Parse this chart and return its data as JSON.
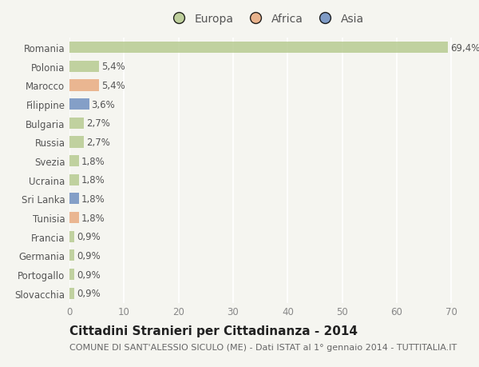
{
  "categories": [
    "Romania",
    "Polonia",
    "Marocco",
    "Filippine",
    "Bulgaria",
    "Russia",
    "Svezia",
    "Ucraina",
    "Sri Lanka",
    "Tunisia",
    "Francia",
    "Germania",
    "Portogallo",
    "Slovacchia"
  ],
  "values": [
    69.4,
    5.4,
    5.4,
    3.6,
    2.7,
    2.7,
    1.8,
    1.8,
    1.8,
    1.8,
    0.9,
    0.9,
    0.9,
    0.9
  ],
  "labels": [
    "69,4%",
    "5,4%",
    "5,4%",
    "3,6%",
    "2,7%",
    "2,7%",
    "1,8%",
    "1,8%",
    "1,8%",
    "1,8%",
    "0,9%",
    "0,9%",
    "0,9%",
    "0,9%"
  ],
  "colors": [
    "#b5c98e",
    "#b5c98e",
    "#e8a87c",
    "#6b8cbf",
    "#b5c98e",
    "#b5c98e",
    "#b5c98e",
    "#b5c98e",
    "#6b8cbf",
    "#e8a87c",
    "#b5c98e",
    "#b5c98e",
    "#b5c98e",
    "#b5c98e"
  ],
  "legend_labels": [
    "Europa",
    "Africa",
    "Asia"
  ],
  "legend_colors": [
    "#b5c98e",
    "#e8a87c",
    "#6b8cbf"
  ],
  "xlim": [
    0,
    72
  ],
  "xticks": [
    0,
    10,
    20,
    30,
    40,
    50,
    60,
    70
  ],
  "title": "Cittadini Stranieri per Cittadinanza - 2014",
  "subtitle": "COMUNE DI SANT'ALESSIO SICULO (ME) - Dati ISTAT al 1° gennaio 2014 - TUTTITALIA.IT",
  "background_color": "#f5f5f0",
  "bar_height": 0.6,
  "grid_color": "#ffffff",
  "label_fontsize": 8.5,
  "title_fontsize": 11,
  "subtitle_fontsize": 8,
  "tick_fontsize": 8.5,
  "legend_fontsize": 10
}
